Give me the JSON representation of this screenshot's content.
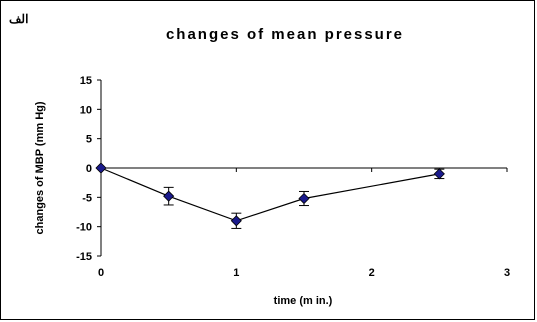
{
  "panel_label": "الف",
  "chart_data": {
    "type": "scatter",
    "title": "changes of mean pressure",
    "xlabel": "time (m in.)",
    "ylabel": "changes of MBP (mm Hg)",
    "xlim": [
      0,
      3
    ],
    "ylim": [
      -15,
      15
    ],
    "x_ticks": [
      0,
      1,
      2,
      3
    ],
    "y_ticks": [
      15,
      10,
      5,
      0,
      -5,
      -10,
      -15
    ],
    "grid": false,
    "connect_points": true,
    "marker": "diamond",
    "colors": {
      "marker_fill": "#1a1a8c",
      "line": "#000000"
    },
    "series": [
      {
        "x": [
          0,
          0.5,
          1,
          1.5,
          2.5
        ],
        "y": [
          0,
          -4.8,
          -9.0,
          -5.2,
          -1.0
        ],
        "error": [
          0,
          1.5,
          1.3,
          1.2,
          0.8
        ]
      }
    ]
  }
}
